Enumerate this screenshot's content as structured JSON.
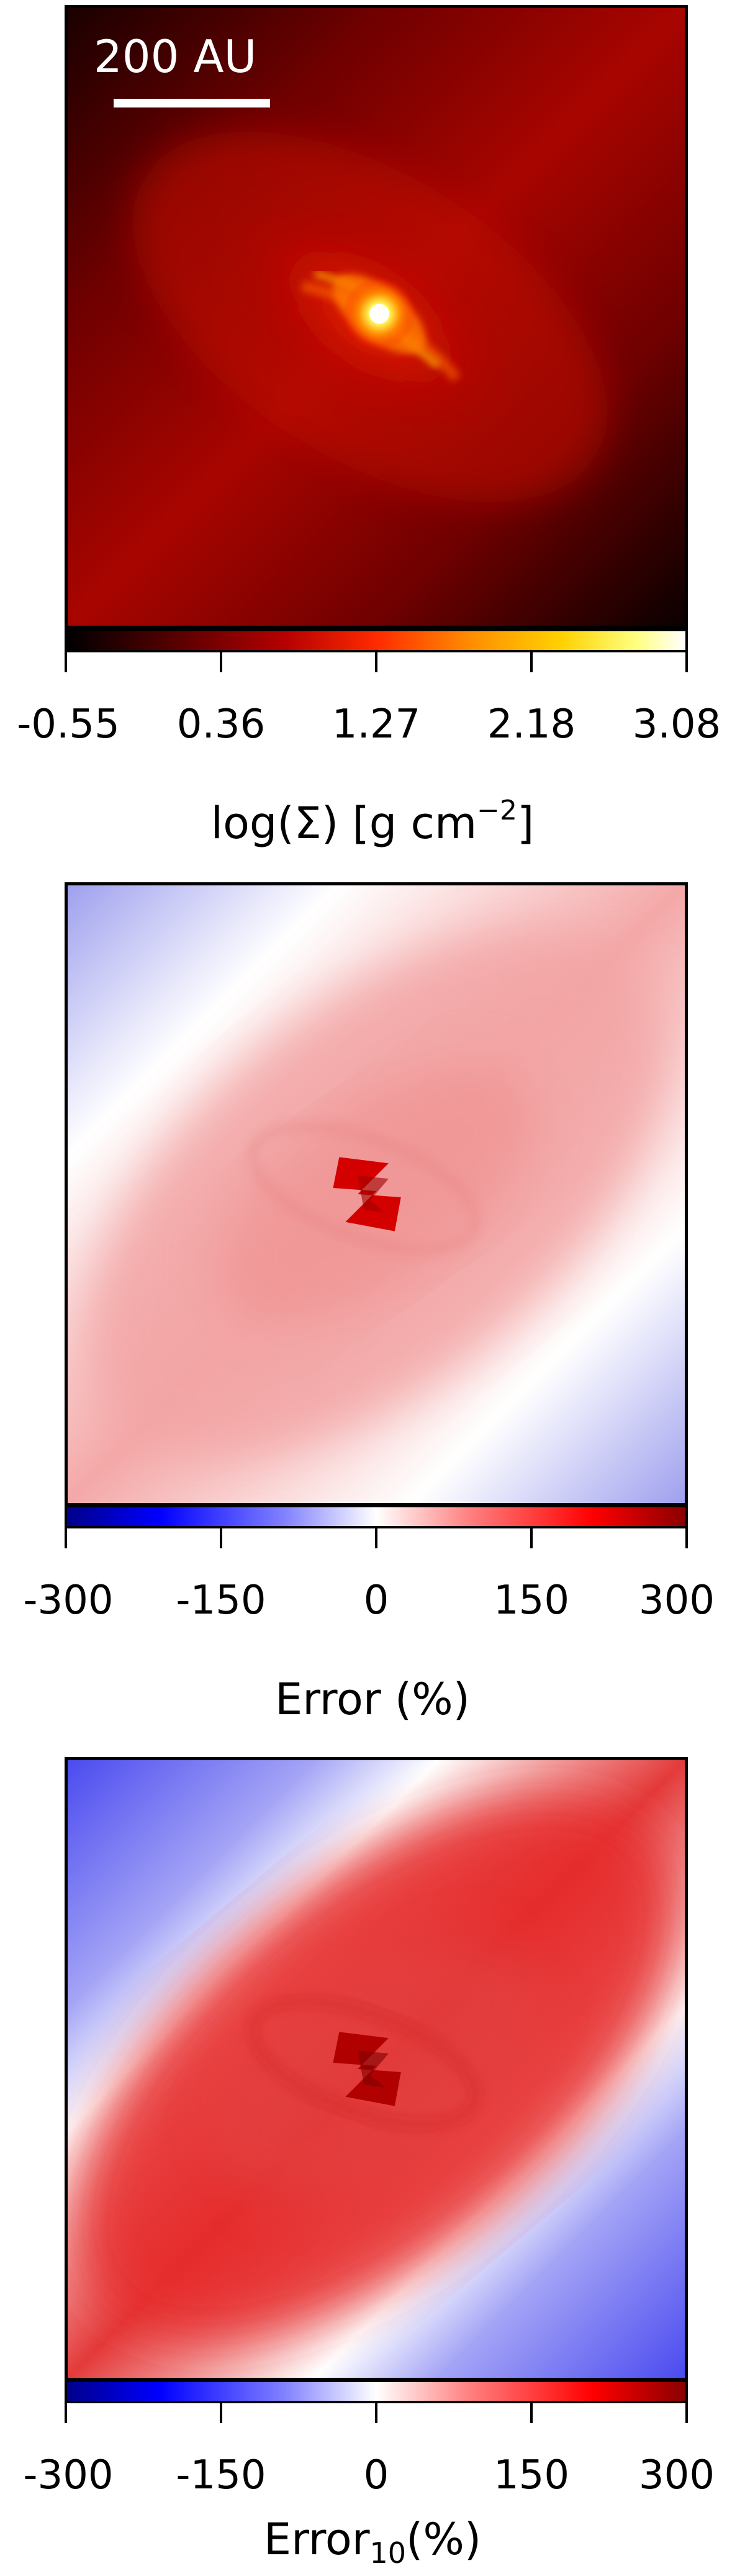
{
  "chart_data": [
    {
      "type": "heatmap",
      "panel": "surface-density",
      "colormap": "hot",
      "colorbar_ticks": [
        "-0.55",
        "0.36",
        "1.27",
        "2.18",
        "3.08"
      ],
      "colorbar_range": [
        -0.55,
        3.08
      ],
      "colorbar_label": "log(Σ) [g cm",
      "colorbar_label_sup": "−2",
      "colorbar_label_end": "]",
      "scalebar_label": "200 AU",
      "colors": {
        "low": "#000000",
        "mid": "#c80000",
        "high": "#ffffff"
      }
    },
    {
      "type": "heatmap",
      "panel": "error",
      "colormap": "bwr",
      "colorbar_ticks": [
        "-300",
        "-150",
        "0",
        "150",
        "300"
      ],
      "colorbar_range": [
        -300,
        300
      ],
      "colorbar_label": "Error (%)",
      "colors": {
        "low": "#0000c8",
        "mid": "#ffffff",
        "high": "#c80000"
      }
    },
    {
      "type": "heatmap",
      "panel": "error-10",
      "colormap": "bwr",
      "colorbar_ticks": [
        "-300",
        "-150",
        "0",
        "150",
        "300"
      ],
      "colorbar_range": [
        -300,
        300
      ],
      "colorbar_label": "Error",
      "colorbar_label_sub": "10",
      "colorbar_label_end": "(%)",
      "colors": {
        "low": "#0000c8",
        "mid": "#ffffff",
        "high": "#c80000"
      }
    }
  ]
}
